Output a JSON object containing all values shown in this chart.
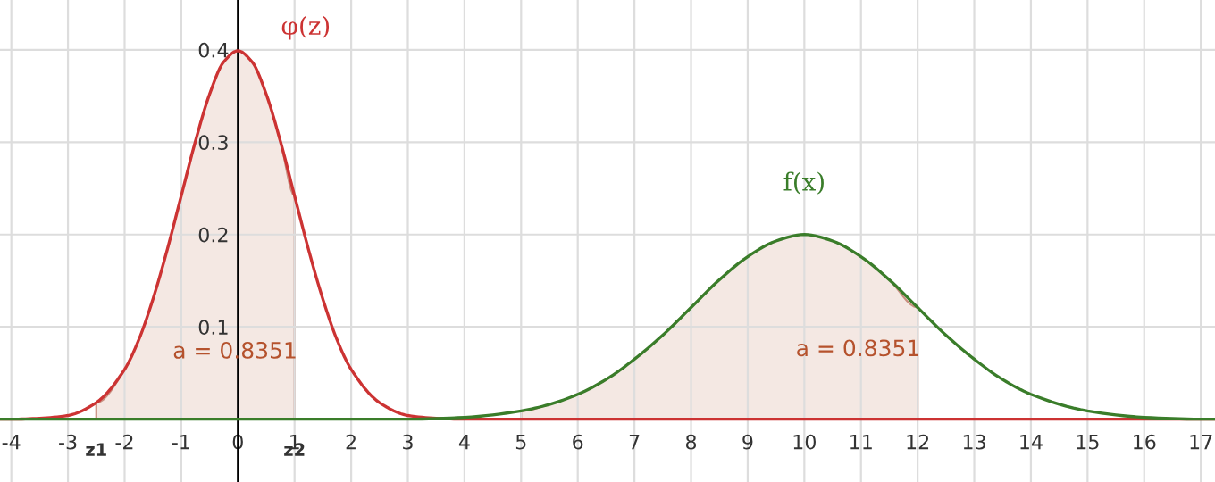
{
  "chart_data": {
    "type": "line",
    "xlim": [
      -4.2,
      17.25
    ],
    "ylim": [
      -0.068,
      0.454
    ],
    "xticks": [
      -4,
      -3,
      -2,
      -1,
      0,
      1,
      2,
      3,
      4,
      5,
      6,
      7,
      8,
      9,
      10,
      11,
      12,
      13,
      14,
      15,
      16,
      17
    ],
    "yticks": [
      0.1,
      0.2,
      0.3,
      0.4
    ],
    "grid": true,
    "legend": false,
    "series": [
      {
        "type": "area",
        "color": "#f4e8e3",
        "x": [
          -2.5,
          -2,
          -1.75,
          -1.5,
          -1.25,
          -1,
          -0.75,
          -0.5,
          -0.25,
          0,
          0.25,
          0.5,
          0.75,
          1
        ],
        "values": [
          0.018,
          0.054,
          0.086,
          0.13,
          0.183,
          0.242,
          0.301,
          0.352,
          0.387,
          0.399,
          0.387,
          0.352,
          0.301,
          0.242
        ]
      },
      {
        "type": "area",
        "color": "#f4e8e3",
        "x": [
          5,
          5.5,
          6,
          6.5,
          7,
          7.5,
          8,
          8.5,
          9,
          9.5,
          10,
          10.5,
          11,
          11.5,
          12
        ],
        "values": [
          0.009,
          0.016,
          0.027,
          0.043,
          0.065,
          0.091,
          0.121,
          0.151,
          0.176,
          0.193,
          0.2,
          0.193,
          0.176,
          0.151,
          0.121
        ]
      },
      {
        "name": "φ(z)",
        "color": "#cc3333",
        "x": [
          -4.2,
          -4,
          -3.5,
          -3,
          -2.5,
          -2,
          -1.75,
          -1.5,
          -1.25,
          -1,
          -0.75,
          -0.5,
          -0.25,
          0,
          0.25,
          0.5,
          0.75,
          1,
          1.25,
          1.5,
          1.75,
          2,
          2.5,
          3,
          3.5,
          4,
          17.25
        ],
        "values": [
          0,
          0,
          0.001,
          0.004,
          0.018,
          0.054,
          0.086,
          0.13,
          0.183,
          0.242,
          0.301,
          0.352,
          0.387,
          0.399,
          0.387,
          0.352,
          0.301,
          0.242,
          0.183,
          0.13,
          0.086,
          0.054,
          0.018,
          0.004,
          0.001,
          0,
          0
        ]
      },
      {
        "name": "f(x)",
        "color": "#3a7d2a",
        "x": [
          -4.2,
          3,
          4,
          5,
          5.5,
          6,
          6.5,
          7,
          7.5,
          8,
          8.5,
          9,
          9.5,
          10,
          10.5,
          11,
          11.5,
          12,
          12.5,
          13,
          13.5,
          14,
          15,
          16,
          17,
          17.25
        ],
        "values": [
          0,
          0,
          0.002,
          0.009,
          0.016,
          0.027,
          0.043,
          0.065,
          0.091,
          0.121,
          0.151,
          0.176,
          0.193,
          0.2,
          0.193,
          0.176,
          0.151,
          0.121,
          0.091,
          0.065,
          0.043,
          0.027,
          0.009,
          0.002,
          0,
          0
        ]
      }
    ],
    "annotations": [
      "a = 0.8351",
      "a = 0.8351",
      "z1",
      "z2"
    ]
  }
}
